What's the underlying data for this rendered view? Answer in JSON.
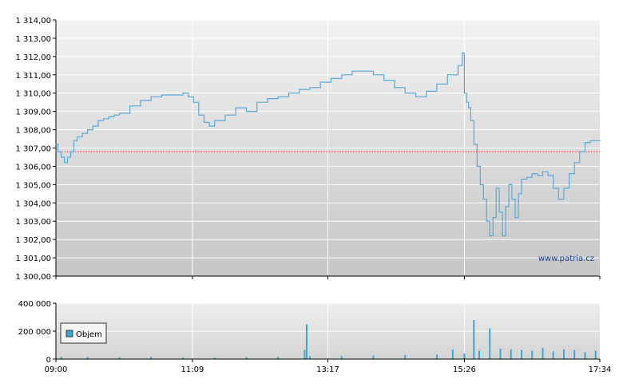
{
  "watermark": "www.patria.cz",
  "colors": {
    "price_line": "#5aa9d6",
    "reference_line": "#e05050",
    "volume_bar": "#3fa6d2",
    "grid": "#ffffff",
    "axis": "#000000",
    "bg_top": "#f2f2f2",
    "bg_bottom": "#c6c6c6"
  },
  "chart_data": [
    {
      "type": "line",
      "title": "",
      "xlabel": "",
      "ylabel": "",
      "ylim": [
        1300,
        1314
      ],
      "y_ticks": [
        1300,
        1301,
        1302,
        1303,
        1304,
        1305,
        1306,
        1307,
        1308,
        1309,
        1310,
        1311,
        1312,
        1313,
        1314
      ],
      "y_tick_labels": [
        "1 300,00",
        "1 301,00",
        "1 302,00",
        "1 303,00",
        "1 304,00",
        "1 305,00",
        "1 306,00",
        "1 307,00",
        "1 308,00",
        "1 309,00",
        "1 310,00",
        "1 311,00",
        "1 312,00",
        "1 313,00",
        "1 314,00"
      ],
      "x_ticks": [
        "09:00",
        "11:09",
        "13:17",
        "15:26",
        "17:34"
      ],
      "reference_line": 1306.8,
      "grid": true,
      "series": [
        {
          "x": [
            "09:00",
            "09:02",
            "09:05",
            "09:08",
            "09:11",
            "09:14",
            "09:17",
            "09:20",
            "09:25",
            "09:30",
            "09:35",
            "09:40",
            "09:45",
            "09:50",
            "09:55",
            "10:00",
            "10:10",
            "10:20",
            "10:30",
            "10:40",
            "10:50",
            "11:00",
            "11:05",
            "11:10",
            "11:15",
            "11:20",
            "11:25",
            "11:30",
            "11:40",
            "11:50",
            "12:00",
            "12:10",
            "12:20",
            "12:30",
            "12:40",
            "12:50",
            "13:00",
            "13:10",
            "13:20",
            "13:30",
            "13:40",
            "13:50",
            "14:00",
            "14:10",
            "14:20",
            "14:30",
            "14:40",
            "14:50",
            "15:00",
            "15:10",
            "15:20",
            "15:24",
            "15:26",
            "15:28",
            "15:30",
            "15:32",
            "15:35",
            "15:38",
            "15:41",
            "15:44",
            "15:47",
            "15:50",
            "15:53",
            "15:56",
            "15:59",
            "16:02",
            "16:05",
            "16:08",
            "16:11",
            "16:14",
            "16:17",
            "16:20",
            "16:25",
            "16:30",
            "16:35",
            "16:40",
            "16:45",
            "16:50",
            "16:55",
            "17:00",
            "17:05",
            "17:10",
            "17:15",
            "17:20",
            "17:25",
            "17:30",
            "17:34"
          ],
          "y": [
            1307.2,
            1306.8,
            1306.5,
            1306.2,
            1306.5,
            1306.8,
            1307.4,
            1307.6,
            1307.8,
            1308.0,
            1308.2,
            1308.5,
            1308.6,
            1308.7,
            1308.8,
            1308.9,
            1309.3,
            1309.6,
            1309.8,
            1309.9,
            1309.9,
            1310.0,
            1309.8,
            1309.5,
            1308.8,
            1308.4,
            1308.2,
            1308.5,
            1308.8,
            1309.2,
            1309.0,
            1309.5,
            1309.7,
            1309.8,
            1310.0,
            1310.2,
            1310.3,
            1310.6,
            1310.8,
            1311.0,
            1311.2,
            1311.2,
            1311.0,
            1310.7,
            1310.3,
            1310.0,
            1309.8,
            1310.1,
            1310.5,
            1311.0,
            1311.5,
            1312.2,
            1310.0,
            1309.5,
            1309.2,
            1308.5,
            1307.2,
            1306.0,
            1305.0,
            1304.2,
            1303.0,
            1302.2,
            1303.2,
            1304.8,
            1303.5,
            1302.2,
            1303.8,
            1305.0,
            1304.2,
            1303.2,
            1304.5,
            1305.3,
            1305.4,
            1305.6,
            1305.5,
            1305.7,
            1305.5,
            1304.8,
            1304.2,
            1304.8,
            1305.6,
            1306.2,
            1306.8,
            1307.3,
            1307.4,
            1307.4,
            1307.4
          ]
        }
      ]
    },
    {
      "type": "bar",
      "title": "",
      "ylim": [
        0,
        400000
      ],
      "y_ticks": [
        0,
        200000,
        400000
      ],
      "y_tick_labels": [
        "0",
        "200 000",
        "400 000"
      ],
      "x_ticks": [
        "09:00",
        "11:09",
        "13:17",
        "15:26",
        "17:34"
      ],
      "legend": "Objem",
      "legend_position": "left",
      "grid": true,
      "series": [
        {
          "name": "Objem",
          "x": [
            "09:05",
            "09:30",
            "10:00",
            "10:30",
            "11:00",
            "11:30",
            "12:00",
            "12:30",
            "12:55",
            "12:57",
            "13:00",
            "13:30",
            "14:00",
            "14:30",
            "15:00",
            "15:15",
            "15:26",
            "15:35",
            "15:40",
            "15:50",
            "16:00",
            "16:10",
            "16:20",
            "16:30",
            "16:40",
            "16:50",
            "17:00",
            "17:10",
            "17:20",
            "17:30"
          ],
          "values": [
            18000,
            15000,
            14000,
            16000,
            12000,
            10000,
            14000,
            16000,
            65000,
            250000,
            20000,
            22000,
            25000,
            30000,
            32000,
            70000,
            40000,
            280000,
            60000,
            220000,
            75000,
            70000,
            65000,
            60000,
            80000,
            55000,
            70000,
            65000,
            50000,
            60000
          ]
        }
      ]
    }
  ]
}
